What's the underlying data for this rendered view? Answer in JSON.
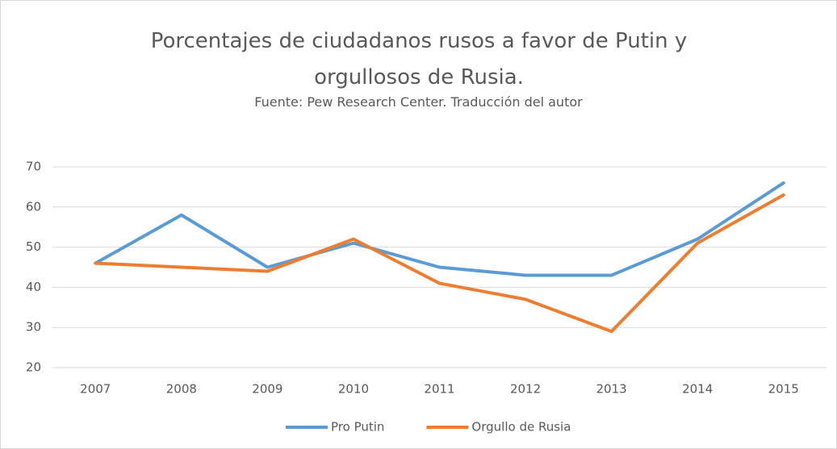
{
  "chart_data": {
    "type": "line",
    "title": "Porcentajes de ciudadanos rusos a favor de Putin y orgullosos de Rusia.",
    "subtitle": "Fuente: Pew Research Center. Traducción del autor",
    "categories": [
      "2007",
      "2008",
      "2009",
      "2010",
      "2011",
      "2012",
      "2013",
      "2014",
      "2015"
    ],
    "series": [
      {
        "name": "Pro Putin",
        "color": "#5b9bd5",
        "values": [
          46,
          58,
          45,
          51,
          45,
          43,
          43,
          52,
          66
        ]
      },
      {
        "name": "Orgullo de Rusia",
        "color": "#ed7d31",
        "values": [
          46,
          45,
          44,
          52,
          41,
          37,
          29,
          51,
          63
        ]
      }
    ],
    "ylim": [
      20,
      70
    ],
    "yticks": [
      20,
      30,
      40,
      50,
      60,
      70
    ],
    "grid": true,
    "legend": "bottom"
  }
}
